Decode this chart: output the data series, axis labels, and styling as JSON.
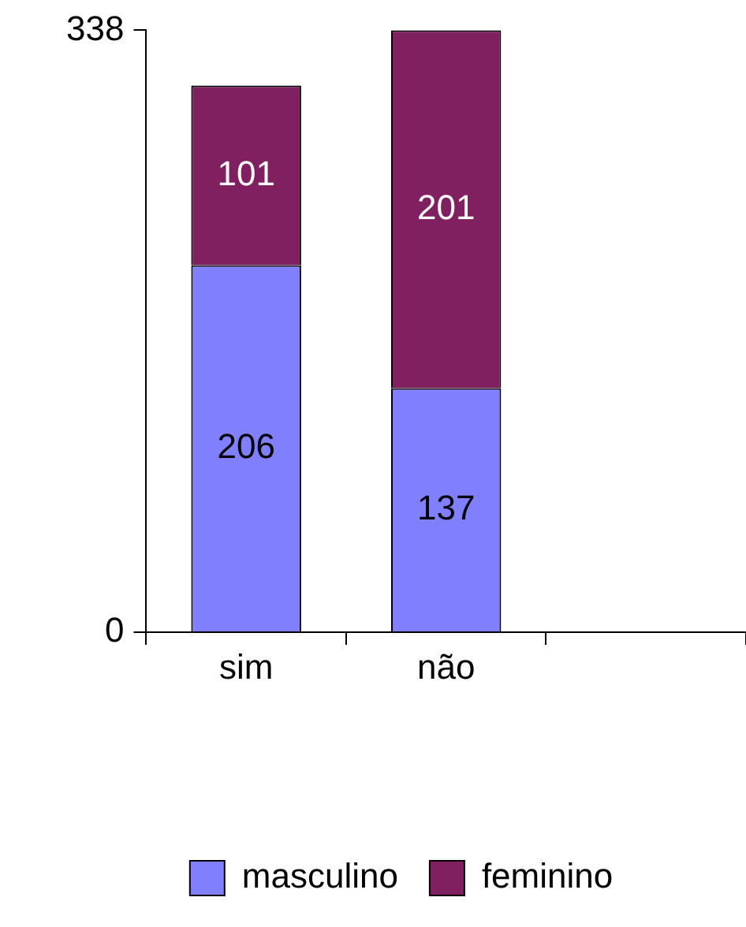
{
  "chart_data": {
    "type": "bar",
    "stacked": true,
    "categories": [
      "sim",
      "não",
      null
    ],
    "series": [
      {
        "name": "masculino",
        "color": "#8080ff",
        "values": [
          206,
          137,
          null
        ]
      },
      {
        "name": "feminino",
        "color": "#802060",
        "values": [
          101,
          201,
          null
        ]
      }
    ],
    "ylim": [
      0,
      338
    ],
    "yticks": [
      0,
      338
    ],
    "grid": false,
    "legend": "bottom",
    "data_labels": true
  }
}
